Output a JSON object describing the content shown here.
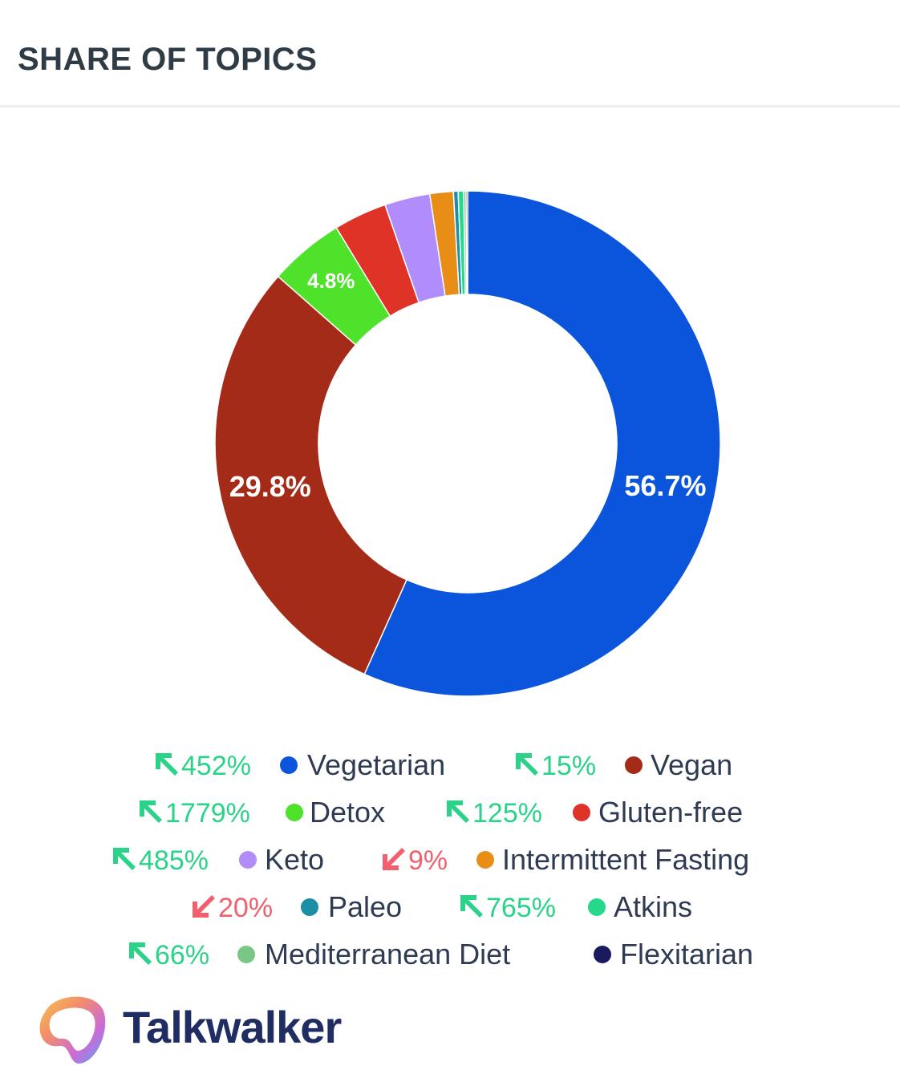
{
  "header": {
    "title": "SHARE OF TOPICS"
  },
  "colors": {
    "up": "#2bd389",
    "down": "#f0616d"
  },
  "chart_data": {
    "type": "pie",
    "donut": true,
    "series": [
      {
        "name": "Vegetarian",
        "value": 56.7,
        "color": "#0a55db",
        "label": "56.7%",
        "trend": "452%",
        "trend_dir": "up"
      },
      {
        "name": "Vegan",
        "value": 29.8,
        "color": "#a42b18",
        "label": "29.8%",
        "trend": "15%",
        "trend_dir": "up"
      },
      {
        "name": "Detox",
        "value": 4.8,
        "color": "#4ee22a",
        "label": "4.8%",
        "trend": "1779%",
        "trend_dir": "up"
      },
      {
        "name": "Gluten-free",
        "value": 3.4,
        "color": "#e03328",
        "label": "",
        "trend": "125%",
        "trend_dir": "up"
      },
      {
        "name": "Keto",
        "value": 2.9,
        "color": "#b08dfa",
        "label": "",
        "trend": "485%",
        "trend_dir": "up"
      },
      {
        "name": "Intermittent Fasting",
        "value": 1.5,
        "color": "#e88e17",
        "label": "",
        "trend": "9%",
        "trend_dir": "down"
      },
      {
        "name": "Paleo",
        "value": 0.3,
        "color": "#1b8fa3",
        "label": "",
        "trend": "20%",
        "trend_dir": "down"
      },
      {
        "name": "Atkins",
        "value": 0.35,
        "color": "#26d98a",
        "label": "",
        "trend": "765%",
        "trend_dir": "up"
      },
      {
        "name": "Mediterranean Diet",
        "value": 0.15,
        "color": "#7ac785",
        "label": "",
        "trend": "66%",
        "trend_dir": "up"
      },
      {
        "name": "Flexitarian",
        "value": 0.1,
        "color": "#1a1a5e",
        "label": "",
        "trend": "",
        "trend_dir": ""
      }
    ]
  },
  "brand": {
    "name": "Talkwalker"
  }
}
